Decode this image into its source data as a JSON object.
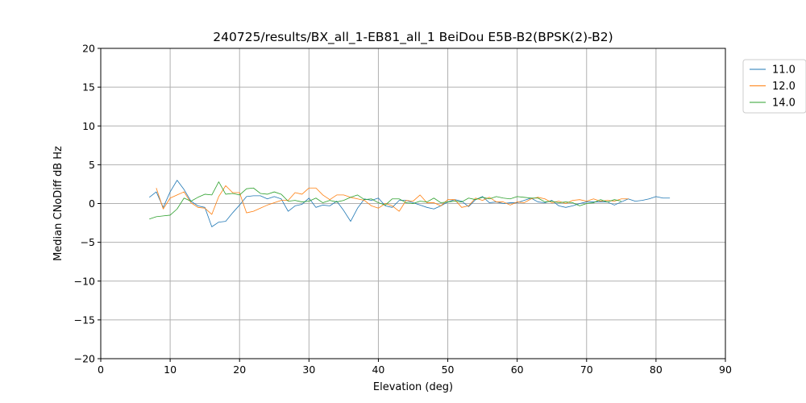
{
  "chart_data": {
    "type": "line",
    "title": "240725/results/BX_all_1-EB81_all_1 BeiDou E5B-B2(BPSK(2)-B2)",
    "xlabel": "Elevation (deg)",
    "ylabel": "Median CNoDiff dB Hz",
    "xlim": [
      0,
      90
    ],
    "ylim": [
      -20,
      20
    ],
    "xticks": [
      0,
      10,
      20,
      30,
      40,
      50,
      60,
      70,
      80,
      90
    ],
    "yticks": [
      -20,
      -15,
      -10,
      -5,
      0,
      5,
      10,
      15,
      20
    ],
    "grid": true,
    "legend_position": "outside-top-right",
    "series": [
      {
        "name": "11.0",
        "color": "#1f77b4",
        "x": [
          7,
          8,
          9,
          10,
          11,
          12,
          13,
          14,
          15,
          16,
          17,
          18,
          19,
          20,
          21,
          22,
          23,
          24,
          25,
          26,
          27,
          28,
          29,
          30,
          31,
          32,
          33,
          34,
          35,
          36,
          37,
          38,
          39,
          40,
          41,
          42,
          43,
          44,
          45,
          46,
          47,
          48,
          49,
          50,
          51,
          52,
          53,
          54,
          55,
          56,
          57,
          58,
          59,
          60,
          61,
          62,
          63,
          64,
          65,
          66,
          67,
          68,
          69,
          70,
          71,
          72,
          73,
          74,
          75,
          76,
          77,
          78,
          79,
          80,
          81,
          82
        ],
        "y": [
          0.8,
          1.5,
          -0.5,
          1.5,
          3.0,
          1.8,
          0.3,
          -0.3,
          -0.5,
          -3.0,
          -2.4,
          -2.3,
          -1.2,
          -0.2,
          0.9,
          1.0,
          1.0,
          0.6,
          0.9,
          0.6,
          -1.0,
          -0.3,
          -0.1,
          0.7,
          -0.5,
          -0.2,
          -0.3,
          0.3,
          -0.9,
          -2.3,
          -0.6,
          0.6,
          0.4,
          0.7,
          -0.3,
          -0.5,
          0.4,
          0.4,
          0.1,
          -0.2,
          -0.5,
          -0.7,
          -0.3,
          0.2,
          0.5,
          0.3,
          -0.4,
          0.5,
          0.9,
          0.1,
          0.2,
          0.0,
          0.1,
          0.1,
          0.4,
          0.7,
          0.2,
          0.1,
          0.4,
          -0.3,
          -0.5,
          -0.3,
          0.0,
          0.2,
          0.2,
          0.2,
          0.2,
          -0.2,
          0.2,
          0.6,
          0.3,
          0.4,
          0.6,
          0.9,
          0.7,
          0.7
        ]
      },
      {
        "name": "12.0",
        "color": "#ff7f0e",
        "x": [
          8,
          9,
          10,
          11,
          12,
          13,
          14,
          15,
          16,
          17,
          18,
          19,
          20,
          21,
          22,
          23,
          24,
          25,
          26,
          27,
          28,
          29,
          30,
          31,
          32,
          33,
          34,
          35,
          36,
          37,
          38,
          39,
          40,
          41,
          42,
          43,
          44,
          45,
          46,
          47,
          48,
          49,
          50,
          51,
          52,
          53,
          54,
          55,
          56,
          57,
          58,
          59,
          60,
          61,
          62,
          63,
          64,
          65,
          66,
          67,
          68,
          69,
          70,
          71,
          72,
          73,
          74,
          75,
          76
        ],
        "y": [
          2.0,
          -0.7,
          0.7,
          1.1,
          1.5,
          0.1,
          -0.5,
          -0.6,
          -1.4,
          0.9,
          2.3,
          1.4,
          1.4,
          -1.2,
          -1.0,
          -0.6,
          -0.2,
          0.1,
          0.4,
          0.4,
          1.4,
          1.2,
          2.0,
          2.0,
          1.1,
          0.5,
          1.1,
          1.1,
          0.8,
          0.6,
          0.4,
          -0.3,
          -0.6,
          0.0,
          -0.3,
          -1.0,
          0.4,
          0.3,
          1.1,
          0.1,
          0.1,
          -0.3,
          0.5,
          0.5,
          -0.5,
          -0.3,
          0.7,
          0.4,
          0.8,
          0.2,
          0.2,
          -0.2,
          0.2,
          0.1,
          0.6,
          0.8,
          0.6,
          0.1,
          0.3,
          0.0,
          0.4,
          0.5,
          0.3,
          0.6,
          0.3,
          0.4,
          0.3,
          0.6,
          0.6
        ]
      },
      {
        "name": "14.0",
        "color": "#2ca02c",
        "x": [
          7,
          8,
          9,
          10,
          11,
          12,
          13,
          14,
          15,
          16,
          17,
          18,
          19,
          20,
          21,
          22,
          23,
          24,
          25,
          26,
          27,
          28,
          29,
          30,
          31,
          32,
          33,
          34,
          35,
          36,
          37,
          38,
          39,
          40,
          41,
          42,
          43,
          44,
          45,
          46,
          47,
          48,
          49,
          50,
          51,
          52,
          53,
          54,
          55,
          56,
          57,
          58,
          59,
          60,
          61,
          62,
          63,
          64,
          65,
          66,
          67,
          68,
          69,
          70,
          71,
          72,
          73,
          74,
          75
        ],
        "y": [
          -2.0,
          -1.7,
          -1.6,
          -1.5,
          -0.7,
          0.7,
          0.3,
          0.8,
          1.2,
          1.1,
          2.8,
          1.2,
          1.3,
          1.1,
          1.9,
          2.0,
          1.3,
          1.2,
          1.5,
          1.2,
          0.3,
          0.4,
          0.2,
          0.3,
          0.7,
          0.1,
          0.4,
          0.2,
          0.4,
          0.8,
          1.1,
          0.5,
          0.6,
          0.1,
          -0.2,
          0.6,
          0.6,
          0.1,
          0.0,
          0.3,
          0.2,
          0.7,
          0.1,
          0.2,
          0.3,
          0.2,
          0.7,
          0.5,
          0.8,
          0.6,
          0.9,
          0.7,
          0.6,
          0.9,
          0.8,
          0.7,
          0.7,
          0.2,
          0.3,
          0.1,
          0.2,
          0.1,
          -0.3,
          0.0,
          0.1,
          0.5,
          0.2,
          0.5,
          0.3
        ]
      }
    ]
  }
}
